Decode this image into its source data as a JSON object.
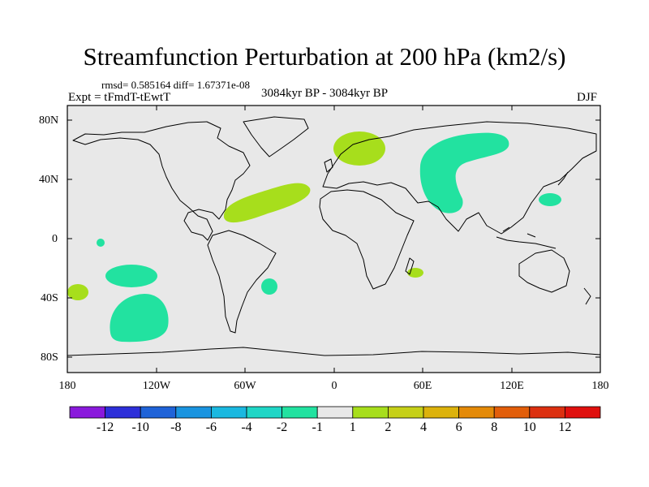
{
  "title": "Streamfunction Perturbation at 200 hPa (km2/s)",
  "stats_line": "rmsd= 0.585164 diff= 1.67371e-08",
  "expt_label": "Expt = tFmdT-tEwtT",
  "period_label": "3084kyr BP - 3084kyr BP",
  "season_label": "DJF",
  "lat_ticks": [
    "80N",
    "40N",
    "0",
    "40S",
    "80S"
  ],
  "lon_ticks": [
    "180",
    "120W",
    "60W",
    "0",
    "60E",
    "120E",
    "180"
  ],
  "colorbar": {
    "labels": [
      "-12",
      "-10",
      "-8",
      "-6",
      "-4",
      "-2",
      "-1",
      "1",
      "2",
      "4",
      "6",
      "8",
      "10",
      "12"
    ],
    "colors": [
      "#8a19dc",
      "#2d2fd9",
      "#1f63d8",
      "#1a94e0",
      "#1ab8e0",
      "#1fd6c6",
      "#22e2a0",
      "#e8e8e8",
      "#a7de1c",
      "#c6d018",
      "#dcb20c",
      "#e48a08",
      "#e25e0a",
      "#dc3010",
      "#e0100e"
    ]
  },
  "colors": {
    "map_bg": "#e8e8e8",
    "negative_fill": "#22e2a0",
    "positive_fill": "#a7de1c"
  },
  "map_data": {
    "projection": "cylindrical equidistant",
    "lon_range": [
      -180,
      180
    ],
    "lat_range": [
      -90,
      90
    ],
    "anomaly_regions": [
      {
        "name": "scandinavia",
        "sign": "positive",
        "level": "1 to 2"
      },
      {
        "name": "north-atlantic",
        "sign": "positive",
        "level": "1 to 2"
      },
      {
        "name": "southern-africa",
        "sign": "positive",
        "level": "1 to 2"
      },
      {
        "name": "southeast-pacific-coast",
        "sign": "positive",
        "level": "1 to 2"
      },
      {
        "name": "eurasia",
        "sign": "negative",
        "level": "-1 to -2"
      },
      {
        "name": "north-pacific",
        "sign": "negative",
        "level": "-1 to -2"
      },
      {
        "name": "south-pacific-large",
        "sign": "negative",
        "level": "-1 to -2"
      },
      {
        "name": "south-pacific-small",
        "sign": "negative",
        "level": "-1 to -2"
      },
      {
        "name": "south-atlantic",
        "sign": "negative",
        "level": "-1 to -2"
      },
      {
        "name": "equatorial-pacific",
        "sign": "negative",
        "level": "-1 to -2"
      }
    ]
  }
}
